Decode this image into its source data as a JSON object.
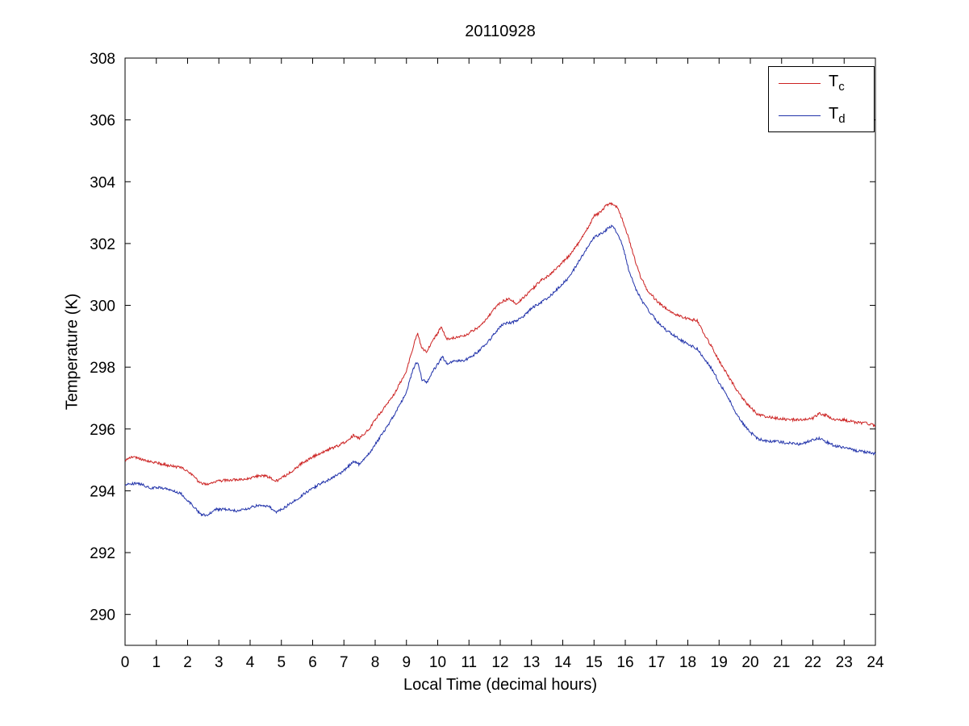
{
  "chart_data": {
    "type": "line",
    "title": "20110928",
    "xlabel": "Local Time (decimal hours)",
    "ylabel": "Temperature (K)",
    "xlim": [
      0,
      24
    ],
    "ylim": [
      289,
      308
    ],
    "xticks": [
      0,
      1,
      2,
      3,
      4,
      5,
      6,
      7,
      8,
      9,
      10,
      11,
      12,
      13,
      14,
      15,
      16,
      17,
      18,
      19,
      20,
      21,
      22,
      23,
      24
    ],
    "yticks": [
      290,
      292,
      294,
      296,
      298,
      300,
      302,
      304,
      306,
      308
    ],
    "grid": false,
    "legend_position": "top-right",
    "series": [
      {
        "name": "T_c",
        "legend_main": "T",
        "legend_sub": "c",
        "color": "#cc2222",
        "points": [
          [
            0,
            295.0
          ],
          [
            0.3,
            295.1
          ],
          [
            0.6,
            295.0
          ],
          [
            1.0,
            294.9
          ],
          [
            1.5,
            294.8
          ],
          [
            1.8,
            294.75
          ],
          [
            2.1,
            294.55
          ],
          [
            2.4,
            294.25
          ],
          [
            2.6,
            294.2
          ],
          [
            2.9,
            294.3
          ],
          [
            3.3,
            294.35
          ],
          [
            3.7,
            294.35
          ],
          [
            4.0,
            294.4
          ],
          [
            4.3,
            294.5
          ],
          [
            4.6,
            294.45
          ],
          [
            4.8,
            294.3
          ],
          [
            5.0,
            294.4
          ],
          [
            5.3,
            294.6
          ],
          [
            5.6,
            294.85
          ],
          [
            6.0,
            295.1
          ],
          [
            6.4,
            295.3
          ],
          [
            6.8,
            295.45
          ],
          [
            7.1,
            295.6
          ],
          [
            7.3,
            295.8
          ],
          [
            7.5,
            295.7
          ],
          [
            7.8,
            296.0
          ],
          [
            8.0,
            296.3
          ],
          [
            8.3,
            296.7
          ],
          [
            8.6,
            297.1
          ],
          [
            9.0,
            297.9
          ],
          [
            9.2,
            298.6
          ],
          [
            9.35,
            299.1
          ],
          [
            9.5,
            298.6
          ],
          [
            9.65,
            298.5
          ],
          [
            9.8,
            298.8
          ],
          [
            10.0,
            299.1
          ],
          [
            10.1,
            299.3
          ],
          [
            10.3,
            298.9
          ],
          [
            10.5,
            298.95
          ],
          [
            10.8,
            299.0
          ],
          [
            11.0,
            299.1
          ],
          [
            11.3,
            299.3
          ],
          [
            11.6,
            299.6
          ],
          [
            11.9,
            300.0
          ],
          [
            12.1,
            300.15
          ],
          [
            12.3,
            300.2
          ],
          [
            12.5,
            300.05
          ],
          [
            12.7,
            300.2
          ],
          [
            13.0,
            300.5
          ],
          [
            13.3,
            300.8
          ],
          [
            13.6,
            301.0
          ],
          [
            13.9,
            301.3
          ],
          [
            14.2,
            301.6
          ],
          [
            14.5,
            302.0
          ],
          [
            14.8,
            302.5
          ],
          [
            15.0,
            302.9
          ],
          [
            15.2,
            303.0
          ],
          [
            15.4,
            303.25
          ],
          [
            15.6,
            303.3
          ],
          [
            15.75,
            303.15
          ],
          [
            15.9,
            302.8
          ],
          [
            16.1,
            302.2
          ],
          [
            16.3,
            301.5
          ],
          [
            16.5,
            300.9
          ],
          [
            16.7,
            300.5
          ],
          [
            17.0,
            300.15
          ],
          [
            17.3,
            299.9
          ],
          [
            17.6,
            299.7
          ],
          [
            17.9,
            299.6
          ],
          [
            18.1,
            299.55
          ],
          [
            18.3,
            299.5
          ],
          [
            18.5,
            299.1
          ],
          [
            18.8,
            298.6
          ],
          [
            19.0,
            298.2
          ],
          [
            19.3,
            297.7
          ],
          [
            19.6,
            297.2
          ],
          [
            19.9,
            296.8
          ],
          [
            20.2,
            296.5
          ],
          [
            20.5,
            296.4
          ],
          [
            20.8,
            296.35
          ],
          [
            21.2,
            296.3
          ],
          [
            21.6,
            296.3
          ],
          [
            22.0,
            296.35
          ],
          [
            22.2,
            296.5
          ],
          [
            22.4,
            296.45
          ],
          [
            22.7,
            296.3
          ],
          [
            23.0,
            296.3
          ],
          [
            23.4,
            296.2
          ],
          [
            23.7,
            296.2
          ],
          [
            24,
            296.1
          ]
        ]
      },
      {
        "name": "T_d",
        "legend_main": "T",
        "legend_sub": "d",
        "color": "#2233aa",
        "points": [
          [
            0,
            294.2
          ],
          [
            0.4,
            294.25
          ],
          [
            0.8,
            294.1
          ],
          [
            1.2,
            294.1
          ],
          [
            1.5,
            294.0
          ],
          [
            1.8,
            293.9
          ],
          [
            2.1,
            293.6
          ],
          [
            2.4,
            293.25
          ],
          [
            2.6,
            293.2
          ],
          [
            2.9,
            293.4
          ],
          [
            3.2,
            293.4
          ],
          [
            3.6,
            293.35
          ],
          [
            4.0,
            293.45
          ],
          [
            4.3,
            293.55
          ],
          [
            4.6,
            293.5
          ],
          [
            4.8,
            293.3
          ],
          [
            5.0,
            293.4
          ],
          [
            5.4,
            293.65
          ],
          [
            5.8,
            293.95
          ],
          [
            6.2,
            294.2
          ],
          [
            6.6,
            294.4
          ],
          [
            7.0,
            294.65
          ],
          [
            7.3,
            294.95
          ],
          [
            7.5,
            294.85
          ],
          [
            7.8,
            295.2
          ],
          [
            8.0,
            295.5
          ],
          [
            8.4,
            296.1
          ],
          [
            8.8,
            296.8
          ],
          [
            9.0,
            297.2
          ],
          [
            9.2,
            297.9
          ],
          [
            9.35,
            298.2
          ],
          [
            9.5,
            297.6
          ],
          [
            9.65,
            297.5
          ],
          [
            9.8,
            297.8
          ],
          [
            10.0,
            298.1
          ],
          [
            10.15,
            298.35
          ],
          [
            10.3,
            298.1
          ],
          [
            10.5,
            298.2
          ],
          [
            10.8,
            298.2
          ],
          [
            11.0,
            298.3
          ],
          [
            11.3,
            298.5
          ],
          [
            11.6,
            298.8
          ],
          [
            11.9,
            299.2
          ],
          [
            12.1,
            299.4
          ],
          [
            12.4,
            299.45
          ],
          [
            12.7,
            299.6
          ],
          [
            13.0,
            299.9
          ],
          [
            13.3,
            300.1
          ],
          [
            13.6,
            300.3
          ],
          [
            13.9,
            300.6
          ],
          [
            14.2,
            300.9
          ],
          [
            14.5,
            301.4
          ],
          [
            14.8,
            301.9
          ],
          [
            15.0,
            302.2
          ],
          [
            15.2,
            302.3
          ],
          [
            15.4,
            302.45
          ],
          [
            15.6,
            302.6
          ],
          [
            15.7,
            302.4
          ],
          [
            15.9,
            302.0
          ],
          [
            16.1,
            301.2
          ],
          [
            16.3,
            300.6
          ],
          [
            16.5,
            300.2
          ],
          [
            16.7,
            299.9
          ],
          [
            17.0,
            299.5
          ],
          [
            17.3,
            299.2
          ],
          [
            17.6,
            299.0
          ],
          [
            17.9,
            298.8
          ],
          [
            18.1,
            298.7
          ],
          [
            18.3,
            298.6
          ],
          [
            18.5,
            298.3
          ],
          [
            18.8,
            297.9
          ],
          [
            19.0,
            297.5
          ],
          [
            19.3,
            297.0
          ],
          [
            19.6,
            296.4
          ],
          [
            19.9,
            296.0
          ],
          [
            20.2,
            295.7
          ],
          [
            20.5,
            295.6
          ],
          [
            20.8,
            295.6
          ],
          [
            21.2,
            295.55
          ],
          [
            21.6,
            295.5
          ],
          [
            22.0,
            295.65
          ],
          [
            22.2,
            295.7
          ],
          [
            22.4,
            295.6
          ],
          [
            22.7,
            295.45
          ],
          [
            23.0,
            295.4
          ],
          [
            23.4,
            295.3
          ],
          [
            23.7,
            295.25
          ],
          [
            24,
            295.2
          ]
        ]
      }
    ]
  }
}
